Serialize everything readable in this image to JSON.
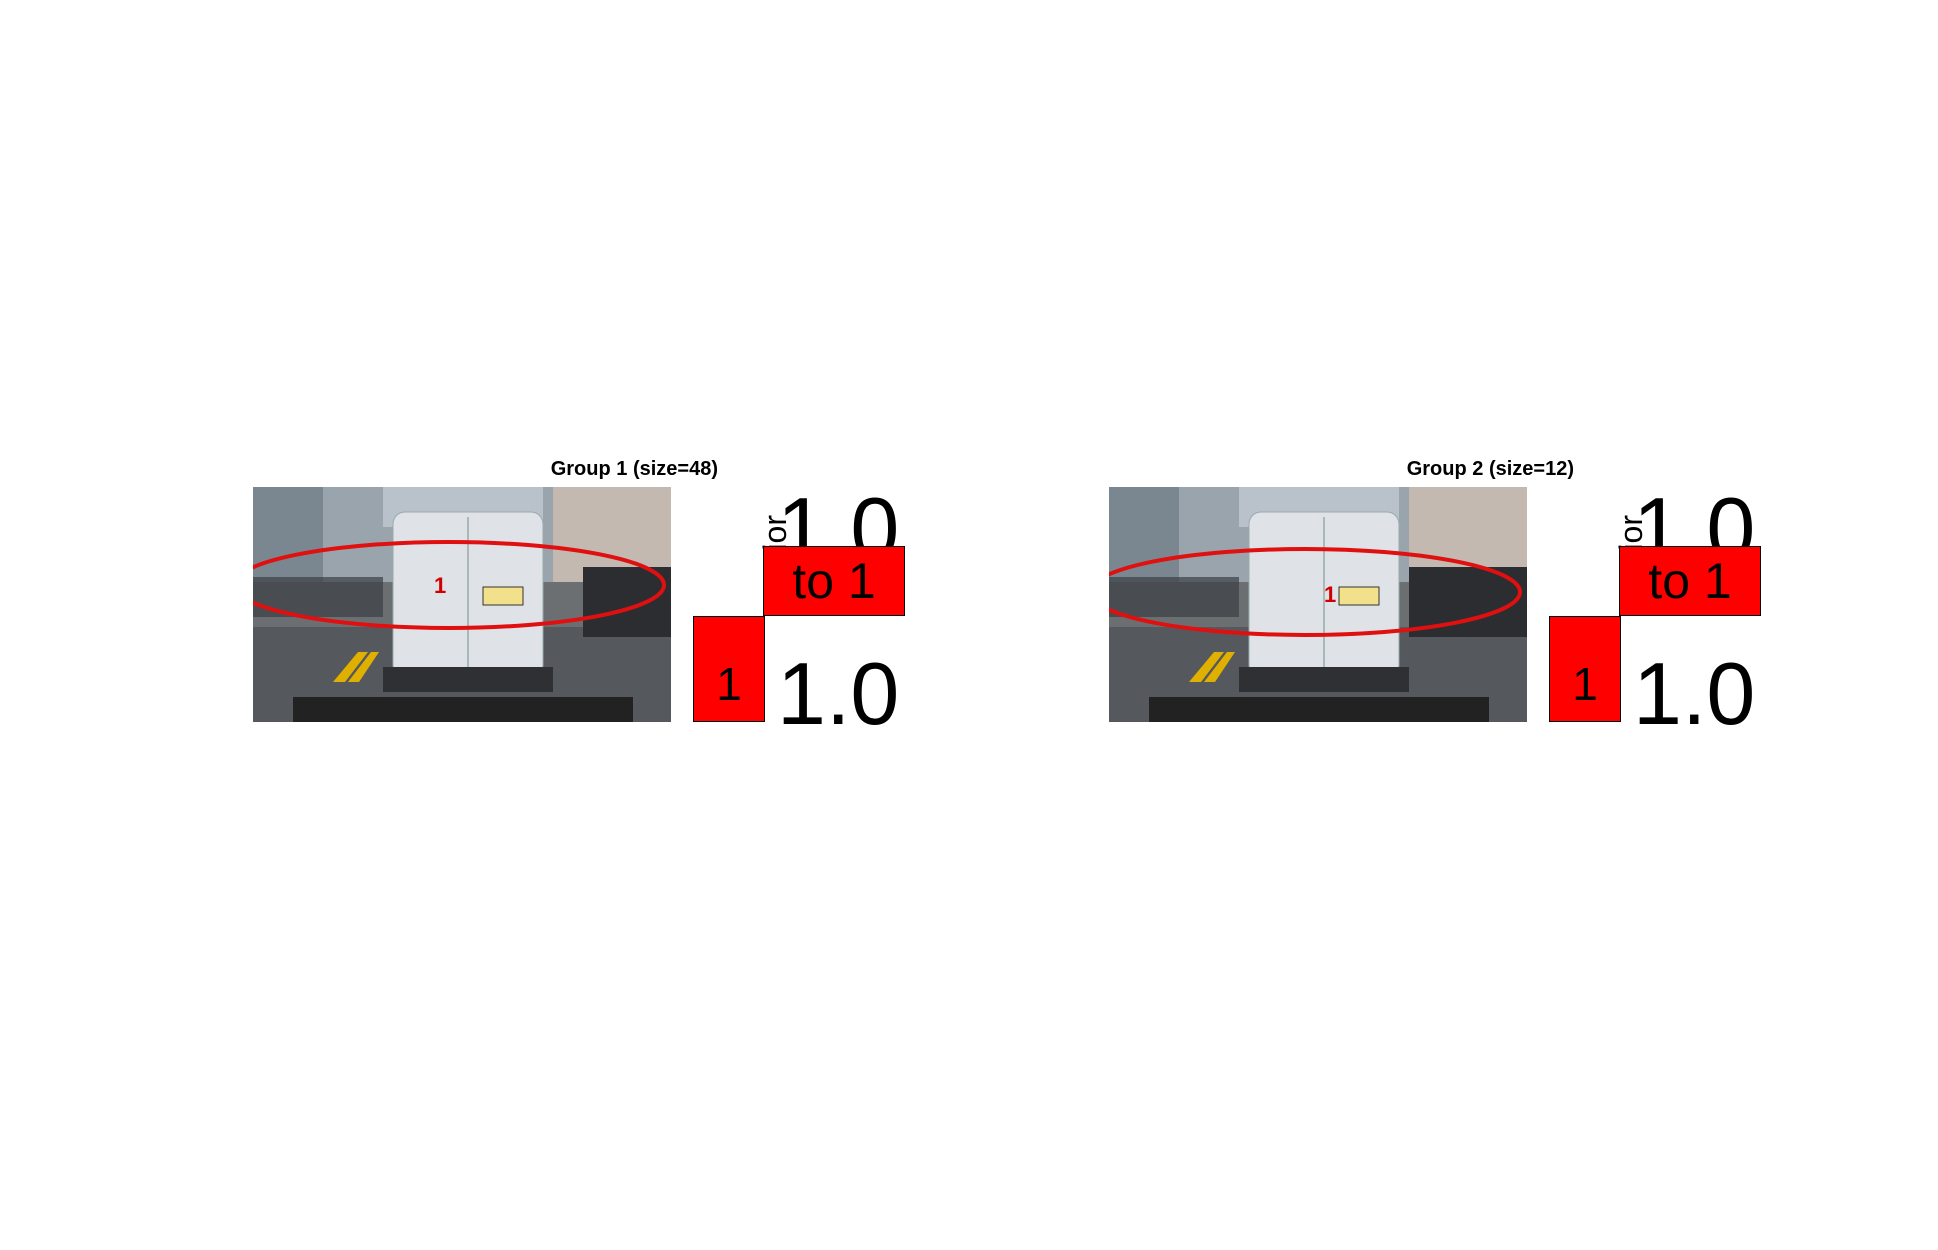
{
  "panels": [
    {
      "title": "Group 1 (size=48)",
      "marker_label": "1",
      "prior_label": "prior",
      "top_value": "1.0",
      "top_cell_text": "to 1",
      "bottom_cell_text": "1",
      "bottom_value": "1.0"
    },
    {
      "title": "Group 2 (size=12)",
      "marker_label": "1",
      "prior_label": "prior",
      "top_value": "1.0",
      "top_cell_text": "to 1",
      "bottom_cell_text": "1",
      "bottom_value": "1.0"
    }
  ],
  "colors": {
    "highlight": "#ff0000",
    "ellipse": "#e01010"
  }
}
